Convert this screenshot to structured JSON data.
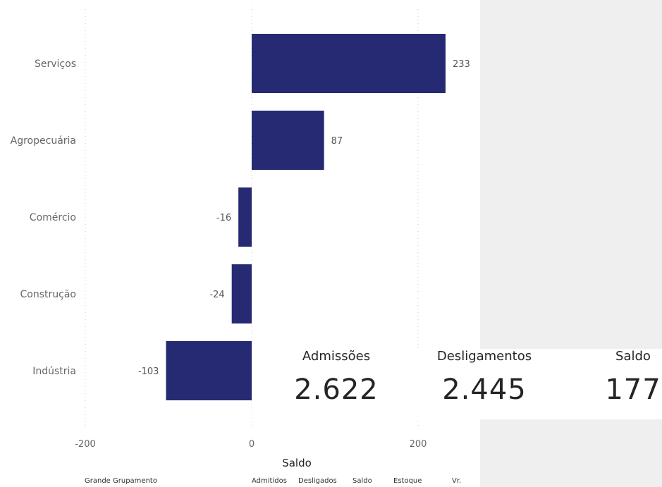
{
  "chart_data": {
    "type": "bar",
    "orientation": "horizontal",
    "categories": [
      "Serviços",
      "Agropecuária",
      "Comércio",
      "Construção",
      "Indústria"
    ],
    "values": [
      233,
      87,
      -16,
      -24,
      -103
    ],
    "data_labels": [
      "233",
      "87",
      "-16",
      "-24",
      "-103"
    ],
    "xlabel": "Saldo",
    "xlim": [
      -200,
      200
    ],
    "xticks": [
      -200,
      0,
      200
    ],
    "xtick_labels": [
      "-200",
      "0",
      "200"
    ],
    "grid": true,
    "bar_color": "#252a72"
  },
  "kpis": [
    {
      "title": "Admissões",
      "value": "2.622"
    },
    {
      "title": "Desligamentos",
      "value": "2.445"
    },
    {
      "title": "Saldo",
      "value": "177"
    }
  ],
  "table_header": {
    "columns": [
      "Grande Grupamento",
      "Admitidos",
      "Desligados",
      "Saldo",
      "Estoque",
      "Vr."
    ]
  }
}
